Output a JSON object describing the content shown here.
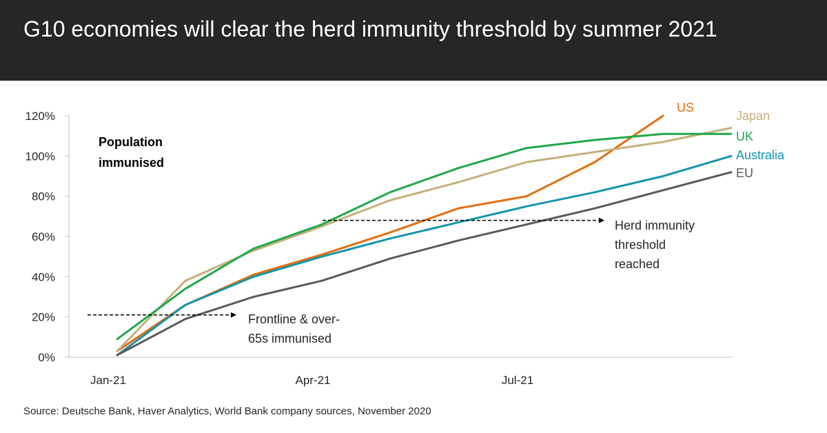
{
  "header": {
    "title": "G10 economies will clear the herd immunity threshold by summer 2021"
  },
  "chart_data": {
    "type": "line",
    "title": "G10 economies will clear the herd immunity threshold by summer 2021",
    "ylabel": "Population immunised",
    "xlabel": "",
    "x": [
      "Jan-21",
      "Feb-21",
      "Mar-21",
      "Apr-21",
      "May-21",
      "Jun-21",
      "Jul-21",
      "Aug-21",
      "Sep-21",
      "Oct-21"
    ],
    "x_ticks": [
      "Jan-21",
      "Apr-21",
      "Jul-21"
    ],
    "y_ticks": [
      "0%",
      "20%",
      "40%",
      "60%",
      "80%",
      "100%",
      "120%"
    ],
    "ylim": [
      0,
      120
    ],
    "grid": false,
    "series": [
      {
        "name": "US",
        "color": "#E46C0A",
        "values": [
          3,
          26,
          41,
          51,
          62,
          74,
          80,
          97,
          120,
          null
        ]
      },
      {
        "name": "Japan",
        "color": "#C4B07A",
        "values": [
          3,
          38,
          53,
          65,
          78,
          87,
          97,
          102,
          107,
          114
        ]
      },
      {
        "name": "UK",
        "color": "#1EA84A",
        "values": [
          9,
          34,
          54,
          66,
          82,
          94,
          104,
          108,
          111,
          111
        ]
      },
      {
        "name": "Australia",
        "color": "#1395AD",
        "values": [
          1,
          26,
          40,
          50,
          59,
          67,
          75,
          82,
          90,
          100
        ]
      },
      {
        "name": "EU",
        "color": "#595959",
        "values": [
          1,
          19,
          30,
          38,
          49,
          58,
          66,
          74,
          83,
          92
        ]
      }
    ],
    "annotations": [
      {
        "id": "frontline",
        "text_lines": [
          "Frontline & over-",
          "65s immunised"
        ],
        "y": 21
      },
      {
        "id": "herd",
        "text_lines": [
          "Herd immunity",
          "threshold",
          "reached"
        ],
        "y": 68
      }
    ]
  },
  "source": "Source: Deutsche Bank, Haver Analytics, World Bank company sources, November 2020"
}
